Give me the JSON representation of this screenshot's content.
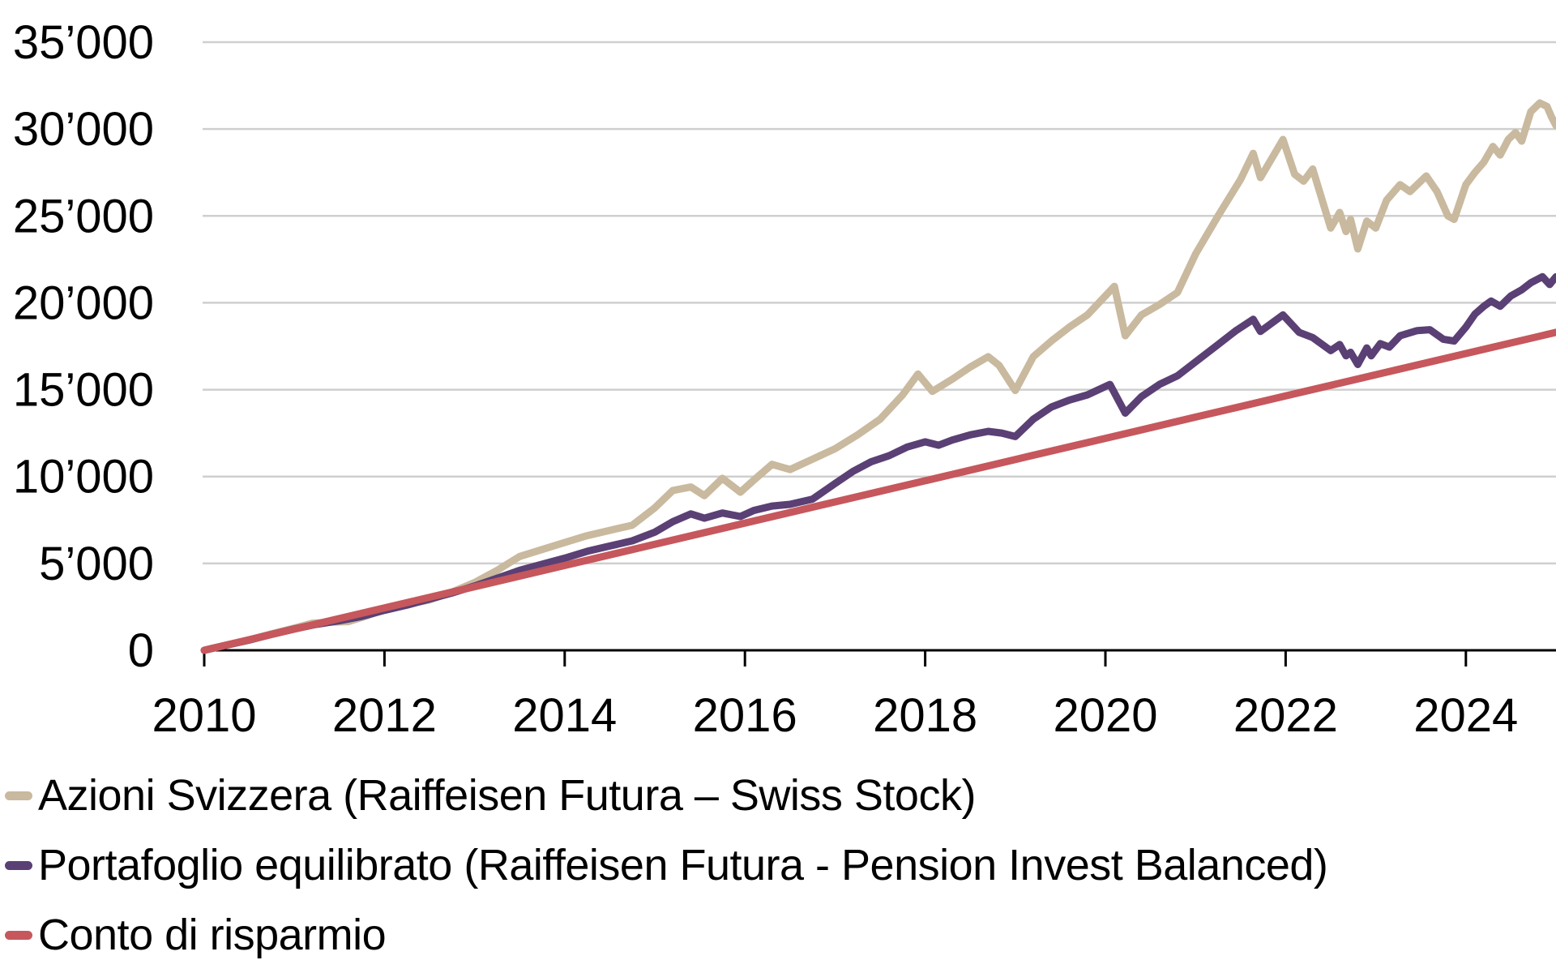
{
  "page": {
    "background": "#ffffff"
  },
  "axes_style": {
    "gridline_color": "#CFCFCF",
    "axis_color": "#000000",
    "label_color": "#000000"
  },
  "legend": {
    "items": [
      {
        "label": "Azioni Svizzera (Raiffeisen Futura – Swiss Stock)",
        "color": "#C9B99E"
      },
      {
        "label": "Portafoglio equilibrato (Raiffeisen Futura - Pension Invest Balanced)",
        "color": "#5A4074"
      },
      {
        "label": "Conto di risparmio",
        "color": "#C6575C"
      }
    ]
  },
  "chart_data": {
    "type": "line",
    "title": "",
    "xlabel": "",
    "ylabel": "",
    "x_range": [
      2010,
      2025
    ],
    "y_range": [
      0,
      35000
    ],
    "grid": "horizontal",
    "legend_position": "bottom-left",
    "x_ticks": [
      {
        "value": 2010,
        "label": "2010"
      },
      {
        "value": 2012,
        "label": "2012"
      },
      {
        "value": 2014,
        "label": "2014"
      },
      {
        "value": 2016,
        "label": "2016"
      },
      {
        "value": 2018,
        "label": "2018"
      },
      {
        "value": 2020,
        "label": "2020"
      },
      {
        "value": 2022,
        "label": "2022"
      },
      {
        "value": 2024,
        "label": "2024"
      }
    ],
    "y_ticks": [
      {
        "value": 0,
        "label": "0"
      },
      {
        "value": 5000,
        "label": "5’000"
      },
      {
        "value": 10000,
        "label": "10’000"
      },
      {
        "value": 15000,
        "label": "15’000"
      },
      {
        "value": 20000,
        "label": "20’000"
      },
      {
        "value": 25000,
        "label": "25’000"
      },
      {
        "value": 30000,
        "label": "30’000"
      },
      {
        "value": 35000,
        "label": "35’000"
      }
    ],
    "series": [
      {
        "id": "azioni-svizzera",
        "name": "Azioni Svizzera (Raiffeisen Futura – Swiss Stock)",
        "color": "#C9B99E",
        "points": [
          [
            2010.0,
            0
          ],
          [
            2010.25,
            310
          ],
          [
            2010.5,
            600
          ],
          [
            2010.75,
            950
          ],
          [
            2011.0,
            1280
          ],
          [
            2011.2,
            1560
          ],
          [
            2011.4,
            1620
          ],
          [
            2011.6,
            1650
          ],
          [
            2011.8,
            1980
          ],
          [
            2012.0,
            2350
          ],
          [
            2012.25,
            2650
          ],
          [
            2012.5,
            2900
          ],
          [
            2012.75,
            3350
          ],
          [
            2013.0,
            3900
          ],
          [
            2013.25,
            4600
          ],
          [
            2013.5,
            5400
          ],
          [
            2013.75,
            5800
          ],
          [
            2014.0,
            6200
          ],
          [
            2014.25,
            6600
          ],
          [
            2014.5,
            6900
          ],
          [
            2014.75,
            7200
          ],
          [
            2015.0,
            8200
          ],
          [
            2015.2,
            9200
          ],
          [
            2015.4,
            9400
          ],
          [
            2015.55,
            8900
          ],
          [
            2015.75,
            9900
          ],
          [
            2015.95,
            9100
          ],
          [
            2016.1,
            9800
          ],
          [
            2016.3,
            10700
          ],
          [
            2016.5,
            10400
          ],
          [
            2016.75,
            11000
          ],
          [
            2017.0,
            11600
          ],
          [
            2017.25,
            12400
          ],
          [
            2017.5,
            13300
          ],
          [
            2017.75,
            14700
          ],
          [
            2017.92,
            15900
          ],
          [
            2018.08,
            14900
          ],
          [
            2018.3,
            15600
          ],
          [
            2018.5,
            16300
          ],
          [
            2018.7,
            16900
          ],
          [
            2018.82,
            16400
          ],
          [
            2019.0,
            14950
          ],
          [
            2019.2,
            16900
          ],
          [
            2019.4,
            17800
          ],
          [
            2019.6,
            18600
          ],
          [
            2019.8,
            19300
          ],
          [
            2020.0,
            20400
          ],
          [
            2020.1,
            20950
          ],
          [
            2020.22,
            18100
          ],
          [
            2020.4,
            19300
          ],
          [
            2020.6,
            19900
          ],
          [
            2020.8,
            20600
          ],
          [
            2021.0,
            22800
          ],
          [
            2021.25,
            25000
          ],
          [
            2021.5,
            27100
          ],
          [
            2021.64,
            28600
          ],
          [
            2021.72,
            27200
          ],
          [
            2021.97,
            29400
          ],
          [
            2022.1,
            27400
          ],
          [
            2022.2,
            27000
          ],
          [
            2022.3,
            27700
          ],
          [
            2022.5,
            24300
          ],
          [
            2022.6,
            25200
          ],
          [
            2022.67,
            24100
          ],
          [
            2022.72,
            24800
          ],
          [
            2022.8,
            23100
          ],
          [
            2022.9,
            24700
          ],
          [
            2023.0,
            24300
          ],
          [
            2023.12,
            25900
          ],
          [
            2023.27,
            26800
          ],
          [
            2023.38,
            26400
          ],
          [
            2023.56,
            27300
          ],
          [
            2023.68,
            26400
          ],
          [
            2023.8,
            25000
          ],
          [
            2023.87,
            24800
          ],
          [
            2024.0,
            26800
          ],
          [
            2024.1,
            27500
          ],
          [
            2024.2,
            28100
          ],
          [
            2024.3,
            29000
          ],
          [
            2024.38,
            28500
          ],
          [
            2024.47,
            29400
          ],
          [
            2024.55,
            29800
          ],
          [
            2024.62,
            29300
          ],
          [
            2024.72,
            31000
          ],
          [
            2024.82,
            31500
          ],
          [
            2024.9,
            31300
          ],
          [
            2024.95,
            30700
          ],
          [
            2025.0,
            30200
          ]
        ]
      },
      {
        "id": "portafoglio-equilibrato",
        "name": "Portafoglio equilibrato (Raiffeisen Futura - Pension Invest Balanced)",
        "color": "#5A4074",
        "points": [
          [
            2010.0,
            0
          ],
          [
            2010.25,
            300
          ],
          [
            2010.5,
            590
          ],
          [
            2010.75,
            920
          ],
          [
            2011.0,
            1230
          ],
          [
            2011.25,
            1500
          ],
          [
            2011.5,
            1700
          ],
          [
            2011.75,
            1950
          ],
          [
            2012.0,
            2300
          ],
          [
            2012.25,
            2600
          ],
          [
            2012.5,
            2950
          ],
          [
            2012.75,
            3300
          ],
          [
            2013.0,
            3700
          ],
          [
            2013.25,
            4150
          ],
          [
            2013.5,
            4600
          ],
          [
            2013.75,
            4950
          ],
          [
            2014.0,
            5300
          ],
          [
            2014.25,
            5700
          ],
          [
            2014.5,
            6000
          ],
          [
            2014.75,
            6300
          ],
          [
            2015.0,
            6800
          ],
          [
            2015.2,
            7400
          ],
          [
            2015.4,
            7850
          ],
          [
            2015.55,
            7600
          ],
          [
            2015.75,
            7900
          ],
          [
            2015.95,
            7700
          ],
          [
            2016.1,
            8050
          ],
          [
            2016.3,
            8300
          ],
          [
            2016.5,
            8400
          ],
          [
            2016.75,
            8700
          ],
          [
            2017.0,
            9600
          ],
          [
            2017.2,
            10300
          ],
          [
            2017.4,
            10850
          ],
          [
            2017.6,
            11200
          ],
          [
            2017.8,
            11700
          ],
          [
            2018.0,
            12000
          ],
          [
            2018.15,
            11800
          ],
          [
            2018.3,
            12100
          ],
          [
            2018.5,
            12400
          ],
          [
            2018.7,
            12600
          ],
          [
            2018.85,
            12500
          ],
          [
            2019.0,
            12300
          ],
          [
            2019.2,
            13300
          ],
          [
            2019.4,
            14000
          ],
          [
            2019.6,
            14400
          ],
          [
            2019.8,
            14700
          ],
          [
            2020.05,
            15300
          ],
          [
            2020.22,
            13650
          ],
          [
            2020.4,
            14600
          ],
          [
            2020.6,
            15300
          ],
          [
            2020.8,
            15800
          ],
          [
            2021.0,
            16600
          ],
          [
            2021.25,
            17600
          ],
          [
            2021.45,
            18400
          ],
          [
            2021.64,
            19050
          ],
          [
            2021.72,
            18350
          ],
          [
            2021.97,
            19300
          ],
          [
            2022.15,
            18300
          ],
          [
            2022.3,
            18000
          ],
          [
            2022.5,
            17250
          ],
          [
            2022.6,
            17600
          ],
          [
            2022.67,
            16950
          ],
          [
            2022.72,
            17150
          ],
          [
            2022.8,
            16450
          ],
          [
            2022.9,
            17400
          ],
          [
            2022.95,
            16950
          ],
          [
            2023.05,
            17650
          ],
          [
            2023.15,
            17450
          ],
          [
            2023.27,
            18100
          ],
          [
            2023.46,
            18400
          ],
          [
            2023.6,
            18450
          ],
          [
            2023.75,
            17900
          ],
          [
            2023.87,
            17800
          ],
          [
            2024.0,
            18600
          ],
          [
            2024.1,
            19350
          ],
          [
            2024.2,
            19800
          ],
          [
            2024.28,
            20100
          ],
          [
            2024.38,
            19800
          ],
          [
            2024.5,
            20400
          ],
          [
            2024.62,
            20750
          ],
          [
            2024.72,
            21150
          ],
          [
            2024.85,
            21500
          ],
          [
            2024.93,
            21050
          ],
          [
            2025.0,
            21500
          ]
        ]
      },
      {
        "id": "conto-di-risparmio",
        "name": "Conto di risparmio",
        "color": "#C6575C",
        "points": [
          [
            2010,
            0
          ],
          [
            2011,
            1220
          ],
          [
            2012,
            2440
          ],
          [
            2013,
            3660
          ],
          [
            2014,
            4880
          ],
          [
            2015,
            6100
          ],
          [
            2016,
            7320
          ],
          [
            2017,
            8540
          ],
          [
            2018,
            9760
          ],
          [
            2019,
            10980
          ],
          [
            2020,
            12200
          ],
          [
            2021,
            13420
          ],
          [
            2022,
            14640
          ],
          [
            2023,
            15860
          ],
          [
            2024,
            17080
          ],
          [
            2025,
            18300
          ]
        ]
      }
    ]
  }
}
